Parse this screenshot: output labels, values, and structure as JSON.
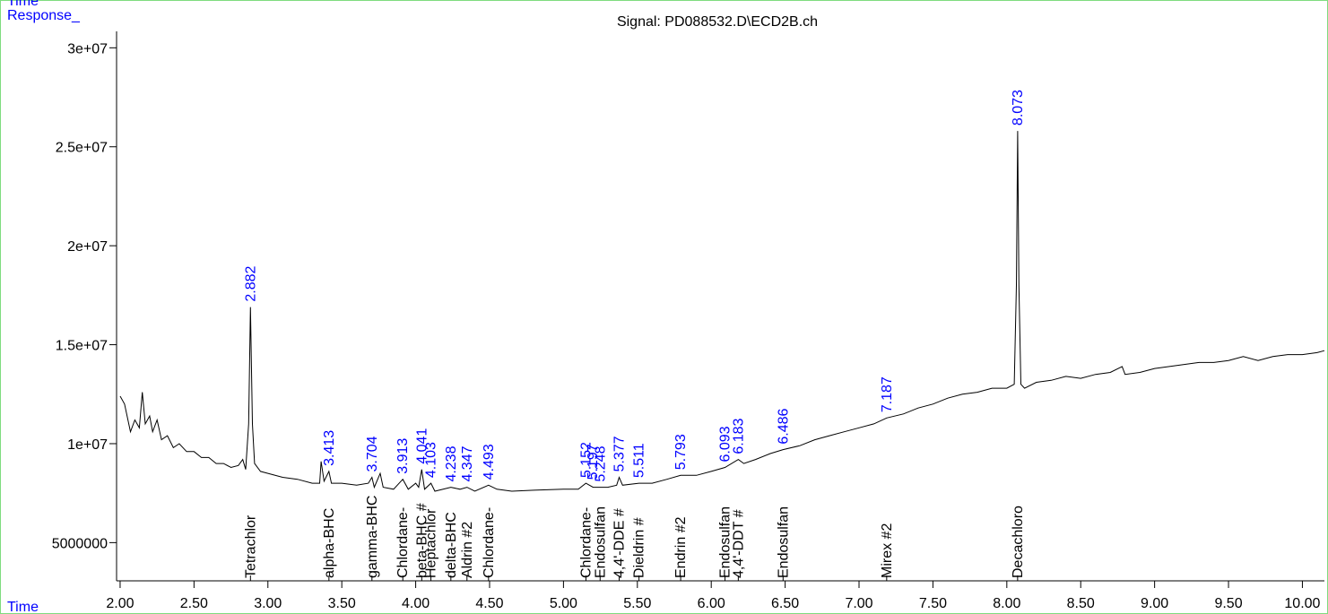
{
  "chart_data": {
    "type": "line",
    "title": "Signal: PD088532.D\\ECD2B.ch",
    "ylabel": "Response_",
    "xlabel": "Time",
    "top_label": "Time",
    "xlim": [
      1.976,
      10.149
    ],
    "ylim": [
      3070000,
      30830000
    ],
    "xticks": [
      {
        "value": 2,
        "label": "2.00"
      },
      {
        "value": 2.5,
        "label": "2.50"
      },
      {
        "value": 3,
        "label": "3.00"
      },
      {
        "value": 3.5,
        "label": "3.50"
      },
      {
        "value": 4,
        "label": "4.00"
      },
      {
        "value": 4.5,
        "label": "4.50"
      },
      {
        "value": 5,
        "label": "5.00"
      },
      {
        "value": 5.5,
        "label": "5.50"
      },
      {
        "value": 6,
        "label": "6.00"
      },
      {
        "value": 6.5,
        "label": "6.50"
      },
      {
        "value": 7,
        "label": "7.00"
      },
      {
        "value": 7.5,
        "label": "7.50"
      },
      {
        "value": 8,
        "label": "8.00"
      },
      {
        "value": 8.5,
        "label": "8.50"
      },
      {
        "value": 9,
        "label": "9.00"
      },
      {
        "value": 9.5,
        "label": "9.50"
      },
      {
        "value": 10,
        "label": "10.00"
      }
    ],
    "yticks": [
      5000000,
      {
        "value": 10000000,
        "label": "1e+07"
      },
      {
        "value": 15000000,
        "label": "1.5e+07"
      },
      {
        "value": 20000000,
        "label": "2e+07"
      },
      {
        "value": 25000000,
        "label": "2.5e+07"
      },
      {
        "value": 30000000,
        "label": "3e+07"
      }
    ],
    "series": [
      {
        "name": "Signal",
        "color": "#000000",
        "x": [
          2.0,
          2.03,
          2.07,
          2.1,
          2.13,
          2.15,
          2.17,
          2.2,
          2.22,
          2.25,
          2.28,
          2.32,
          2.36,
          2.4,
          2.45,
          2.5,
          2.55,
          2.6,
          2.65,
          2.7,
          2.75,
          2.8,
          2.83,
          2.85,
          2.87,
          2.882,
          2.895,
          2.91,
          2.95,
          3.0,
          3.1,
          3.2,
          3.3,
          3.35,
          3.36,
          3.38,
          3.413,
          3.43,
          3.5,
          3.6,
          3.68,
          3.704,
          3.72,
          3.76,
          3.78,
          3.85,
          3.913,
          3.95,
          4.0,
          4.02,
          4.041,
          4.06,
          4.103,
          4.13,
          4.238,
          4.3,
          4.347,
          4.4,
          4.493,
          4.55,
          4.65,
          4.8,
          5.0,
          5.1,
          5.152,
          5.2,
          5.248,
          5.3,
          5.36,
          5.377,
          5.4,
          5.511,
          5.6,
          5.7,
          5.793,
          5.9,
          6.0,
          6.093,
          6.183,
          6.22,
          6.3,
          6.4,
          6.486,
          6.6,
          6.7,
          6.8,
          6.9,
          7.0,
          7.1,
          7.187,
          7.3,
          7.4,
          7.5,
          7.6,
          7.7,
          7.8,
          7.9,
          8.0,
          8.05,
          8.065,
          8.073,
          8.082,
          8.095,
          8.12,
          8.2,
          8.3,
          8.4,
          8.5,
          8.6,
          8.7,
          8.78,
          8.8,
          8.9,
          9.0,
          9.1,
          9.2,
          9.3,
          9.4,
          9.5,
          9.6,
          9.7,
          9.8,
          9.9,
          10.0,
          10.1,
          10.149
        ],
        "values": [
          12400000,
          12000000,
          10600000,
          11200000,
          10800000,
          12600000,
          11000000,
          11400000,
          10600000,
          11200000,
          10200000,
          10400000,
          9800000,
          10000000,
          9600000,
          9600000,
          9300000,
          9300000,
          9000000,
          9000000,
          8800000,
          8900000,
          9200000,
          8700000,
          11000000,
          16900000,
          11000000,
          9000000,
          8600000,
          8500000,
          8300000,
          8200000,
          8000000,
          8000000,
          9100000,
          8100000,
          8600000,
          8000000,
          8000000,
          7900000,
          8000000,
          8300000,
          7800000,
          8500000,
          7800000,
          7700000,
          8200000,
          7700000,
          8000000,
          7800000,
          8700000,
          7700000,
          8000000,
          7600000,
          7800000,
          7700000,
          7800000,
          7600000,
          7900000,
          7700000,
          7600000,
          7650000,
          7700000,
          7700000,
          8000000,
          7800000,
          7800000,
          7800000,
          7900000,
          8300000,
          7900000,
          8000000,
          8000000,
          8200000,
          8400000,
          8400000,
          8600000,
          8800000,
          9200000,
          9000000,
          9200000,
          9500000,
          9700000,
          9900000,
          10200000,
          10400000,
          10600000,
          10800000,
          11000000,
          11300000,
          11500000,
          11800000,
          12000000,
          12300000,
          12500000,
          12600000,
          12800000,
          12800000,
          13000000,
          18000000,
          25800000,
          18000000,
          13000000,
          12800000,
          13100000,
          13200000,
          13400000,
          13300000,
          13500000,
          13600000,
          13900000,
          13500000,
          13600000,
          13800000,
          13900000,
          14000000,
          14100000,
          14100000,
          14200000,
          14400000,
          14200000,
          14400000,
          14500000,
          14500000,
          14600000,
          14700000
        ]
      }
    ],
    "peaks": [
      {
        "time": 2.882,
        "height": 16900000
      },
      {
        "time": 3.413,
        "height": 8600000
      },
      {
        "time": 3.704,
        "height": 8300000
      },
      {
        "time": 3.913,
        "height": 8200000
      },
      {
        "time": 4.041,
        "height": 8700000
      },
      {
        "time": 4.103,
        "height": 8000000
      },
      {
        "time": 4.238,
        "height": 7800000
      },
      {
        "time": 4.347,
        "height": 7800000
      },
      {
        "time": 4.493,
        "height": 7900000
      },
      {
        "time": 5.152,
        "height": 8000000
      },
      {
        "time": 5.197,
        "height": 7900000
      },
      {
        "time": 5.248,
        "height": 7800000
      },
      {
        "time": 5.377,
        "height": 8300000
      },
      {
        "time": 5.511,
        "height": 8000000
      },
      {
        "time": 5.793,
        "height": 8400000
      },
      {
        "time": 6.093,
        "height": 8800000
      },
      {
        "time": 6.183,
        "height": 9200000
      },
      {
        "time": 6.486,
        "height": 9700000
      },
      {
        "time": 7.187,
        "height": 11300000
      },
      {
        "time": 8.073,
        "height": 25800000
      }
    ],
    "compounds": [
      {
        "name": "Tetrachlor",
        "time": 2.882
      },
      {
        "name": "alpha-BHC",
        "time": 3.413
      },
      {
        "name": "gamma-BHC",
        "time": 3.704
      },
      {
        "name": "Chlordane-",
        "time": 3.913
      },
      {
        "name": "beta-BHC #",
        "time": 4.041
      },
      {
        "name": "Heptachlor",
        "time": 4.103
      },
      {
        "name": "delta-BHC",
        "time": 4.238
      },
      {
        "name": "Aldrin #2",
        "time": 4.347
      },
      {
        "name": "Chlordane-",
        "time": 4.493
      },
      {
        "name": "Chlordane-",
        "time": 5.152
      },
      {
        "name": "Endosulfan",
        "time": 5.248
      },
      {
        "name": "4,4'-DDE #",
        "time": 5.377
      },
      {
        "name": "Dieldrin #",
        "time": 5.511
      },
      {
        "name": "Endrin #2",
        "time": 5.793
      },
      {
        "name": "Endosulfan",
        "time": 6.093
      },
      {
        "name": "4,4'-DDT #",
        "time": 6.183
      },
      {
        "name": "Endosulfan",
        "time": 6.486
      },
      {
        "name": "Mirex #2",
        "time": 7.187
      },
      {
        "name": "Decachloro",
        "time": 8.073
      }
    ]
  }
}
